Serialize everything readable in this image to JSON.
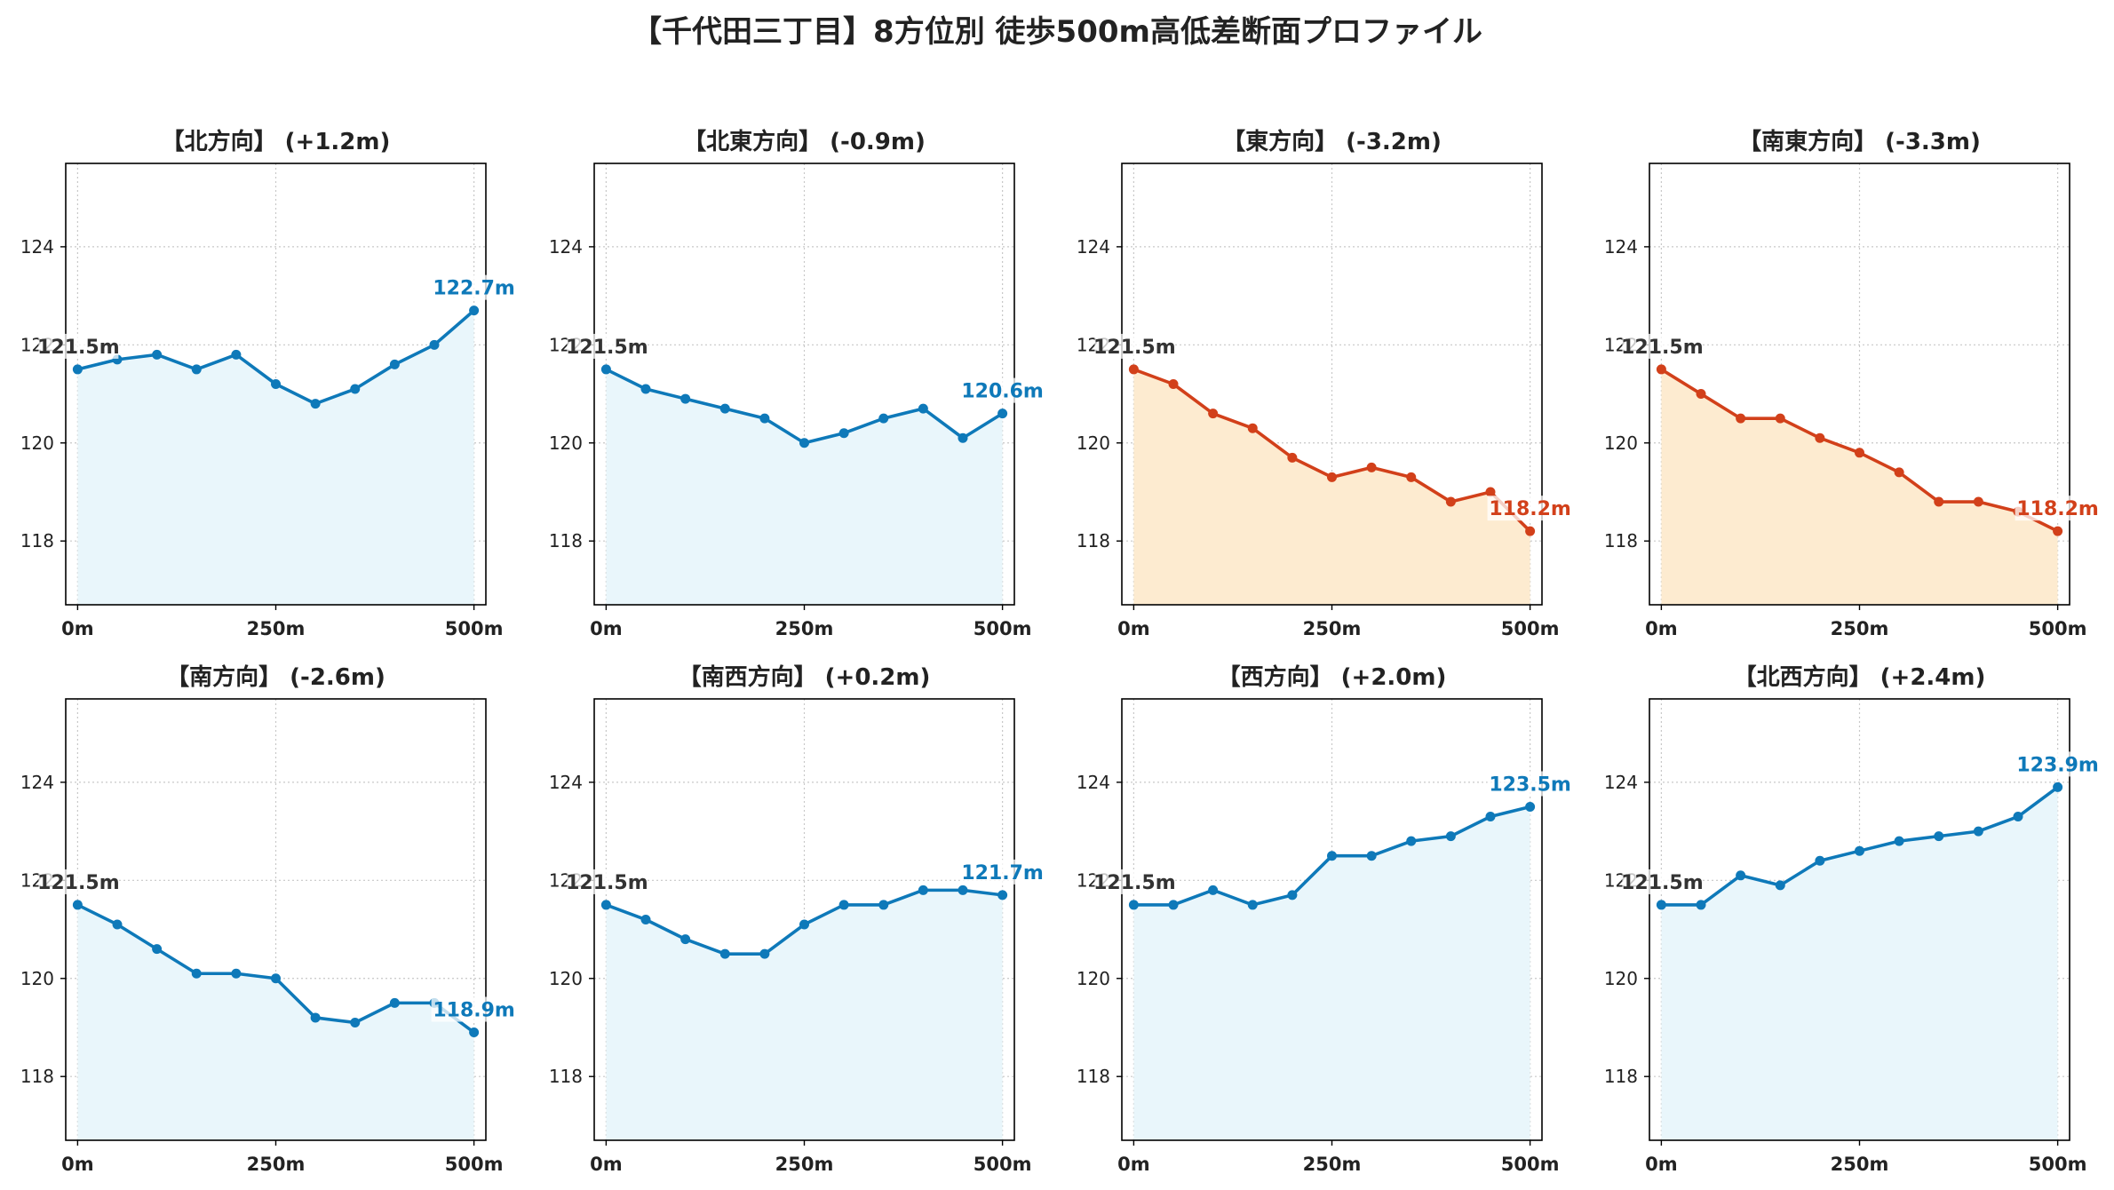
{
  "figure_title": "【千代田三丁目】8方位別 徒歩500m高低差断面プロファイル",
  "colors": {
    "rise": "#0e79b9",
    "rise_fill": "#e9f6fb",
    "fall": "#d2401a",
    "fall_fill": "#fdebd0",
    "start_label": "#333333",
    "grid": "#c8c8c8"
  },
  "shared_axes": {
    "x_ticks": [
      0,
      250,
      500
    ],
    "x_tick_labels": [
      "0m",
      "250m",
      "500m"
    ],
    "y_ticks": [
      118,
      120,
      122,
      124
    ],
    "y_tick_labels": [
      "118",
      "120",
      "122",
      "124"
    ],
    "xlim": [
      -15,
      515
    ],
    "ylim": [
      116.7,
      125.7
    ],
    "grid": true,
    "grid_style": "dotted"
  },
  "chart_data": [
    {
      "type": "line",
      "title": "【北方向】 (+1.2m)",
      "trend": "rise",
      "x": [
        0,
        50,
        100,
        150,
        200,
        250,
        300,
        350,
        400,
        450,
        500
      ],
      "values": [
        121.5,
        121.7,
        121.8,
        121.5,
        121.8,
        121.2,
        120.8,
        121.1,
        121.6,
        122.0,
        122.7
      ],
      "start_label": "121.5m",
      "end_label": "122.7m"
    },
    {
      "type": "line",
      "title": "【北東方向】 (-0.9m)",
      "trend": "rise",
      "x": [
        0,
        50,
        100,
        150,
        200,
        250,
        300,
        350,
        400,
        450,
        500
      ],
      "values": [
        121.5,
        121.1,
        120.9,
        120.7,
        120.5,
        120.0,
        120.2,
        120.5,
        120.7,
        120.1,
        120.6
      ],
      "start_label": "121.5m",
      "end_label": "120.6m"
    },
    {
      "type": "line",
      "title": "【東方向】 (-3.2m)",
      "trend": "fall",
      "x": [
        0,
        50,
        100,
        150,
        200,
        250,
        300,
        350,
        400,
        450,
        500
      ],
      "values": [
        121.5,
        121.2,
        120.6,
        120.3,
        119.7,
        119.3,
        119.5,
        119.3,
        118.8,
        119.0,
        118.2
      ],
      "start_label": "121.5m",
      "end_label": "118.2m"
    },
    {
      "type": "line",
      "title": "【南東方向】 (-3.3m)",
      "trend": "fall",
      "x": [
        0,
        50,
        100,
        150,
        200,
        250,
        300,
        350,
        400,
        450,
        500
      ],
      "values": [
        121.5,
        121.0,
        120.5,
        120.5,
        120.1,
        119.8,
        119.4,
        118.8,
        118.8,
        118.6,
        118.2
      ],
      "start_label": "121.5m",
      "end_label": "118.2m"
    },
    {
      "type": "line",
      "title": "【南方向】 (-2.6m)",
      "trend": "rise",
      "x": [
        0,
        50,
        100,
        150,
        200,
        250,
        300,
        350,
        400,
        450,
        500
      ],
      "values": [
        121.5,
        121.1,
        120.6,
        120.1,
        120.1,
        120.0,
        119.2,
        119.1,
        119.5,
        119.5,
        118.9
      ],
      "start_label": "121.5m",
      "end_label": "118.9m"
    },
    {
      "type": "line",
      "title": "【南西方向】 (+0.2m)",
      "trend": "rise",
      "x": [
        0,
        50,
        100,
        150,
        200,
        250,
        300,
        350,
        400,
        450,
        500
      ],
      "values": [
        121.5,
        121.2,
        120.8,
        120.5,
        120.5,
        121.1,
        121.5,
        121.5,
        121.8,
        121.8,
        121.7
      ],
      "start_label": "121.5m",
      "end_label": "121.7m"
    },
    {
      "type": "line",
      "title": "【西方向】 (+2.0m)",
      "trend": "rise",
      "x": [
        0,
        50,
        100,
        150,
        200,
        250,
        300,
        350,
        400,
        450,
        500
      ],
      "values": [
        121.5,
        121.5,
        121.8,
        121.5,
        121.7,
        122.5,
        122.5,
        122.8,
        122.9,
        123.3,
        123.5
      ],
      "start_label": "121.5m",
      "end_label": "123.5m"
    },
    {
      "type": "line",
      "title": "【北西方向】 (+2.4m)",
      "trend": "rise",
      "x": [
        0,
        50,
        100,
        150,
        200,
        250,
        300,
        350,
        400,
        450,
        500
      ],
      "values": [
        121.5,
        121.5,
        122.1,
        121.9,
        122.4,
        122.6,
        122.8,
        122.9,
        123.0,
        123.3,
        123.9
      ],
      "start_label": "121.5m",
      "end_label": "123.9m"
    }
  ]
}
